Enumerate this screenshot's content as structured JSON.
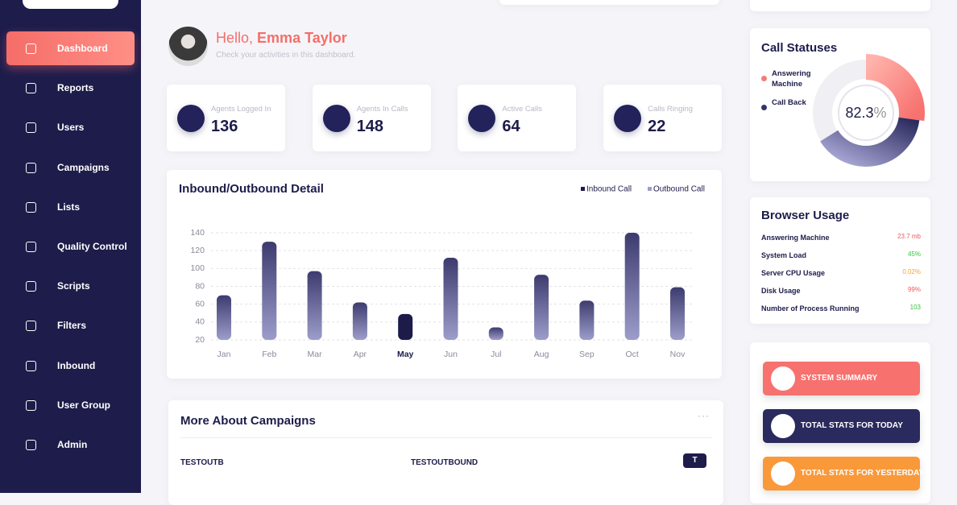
{
  "sidebar": {
    "menu": [
      "Dashboard",
      "Reports",
      "Users",
      "Campaigns",
      "Lists",
      "Quality Control",
      "Scripts",
      "Filters",
      "Inbound",
      "User Group",
      "Admin"
    ],
    "active_index": 0
  },
  "greeting": {
    "hello": "Hello,",
    "name": "Emma Taylor",
    "subtitle": "Check your activities in this dashboard."
  },
  "stats": [
    {
      "label": "Agents Logged In",
      "value": 136
    },
    {
      "label": "Agents In Calls",
      "value": 148
    },
    {
      "label": "Active Calls",
      "value": 64
    },
    {
      "label": "Calls Ringing",
      "value": 22
    }
  ],
  "traffic_chart": {
    "type": "bar",
    "title": "Inbound/Outbound Detail",
    "legend": [
      "Inbound Call",
      "Outbound Call"
    ],
    "categories": [
      "Jan",
      "Feb",
      "Mar",
      "Apr",
      "May",
      "Jun",
      "Jul",
      "Aug",
      "Sep",
      "Oct",
      "Nov"
    ],
    "values": [
      70,
      130,
      97,
      62,
      49,
      112,
      34,
      93,
      64,
      140,
      79
    ],
    "ylim": [
      20,
      140
    ],
    "yticks": [
      20,
      40,
      60,
      80,
      100,
      120,
      140
    ],
    "grid": true,
    "highlight_index": 4,
    "color": "#3d3b6e",
    "highlight_color": "#1c1b4a"
  },
  "campaigns": {
    "title": "More About Campaigns",
    "rows": [
      [
        "TESTOUTB",
        "TESTOUTBOUND",
        "T"
      ]
    ]
  },
  "call_statuses": {
    "title": "Call Statuses",
    "legend": [
      {
        "name": "Answering Machine",
        "color": "#f47a78"
      },
      {
        "name": "Call Back",
        "color": "#34336a"
      }
    ],
    "center_value": "82.3",
    "center_unit": "%"
  },
  "browser_usage": {
    "title": "Browser Usage",
    "rows": [
      {
        "label": "Answering Machine",
        "value": "23.7 mb",
        "color": "#f05a5a"
      },
      {
        "label": "System Load",
        "value": "45%",
        "color": "#3cc23c"
      },
      {
        "label": "Server CPU Usage",
        "value": "0.02%",
        "color": "#f5a23a"
      },
      {
        "label": "Disk Usage",
        "value": "99%",
        "color": "#f05a5a"
      },
      {
        "label": "Number of Process Running",
        "value": "103",
        "color": "#3cc23c"
      }
    ]
  },
  "actions": [
    {
      "label": "SYSTEM SUMMARY",
      "color": "#f7716f"
    },
    {
      "label": "TOTAL STATS FOR TODAY",
      "color": "#2b2a5e"
    },
    {
      "label": "TOTAL STATS FOR YESTERDAY",
      "color": "#f9993a"
    }
  ]
}
